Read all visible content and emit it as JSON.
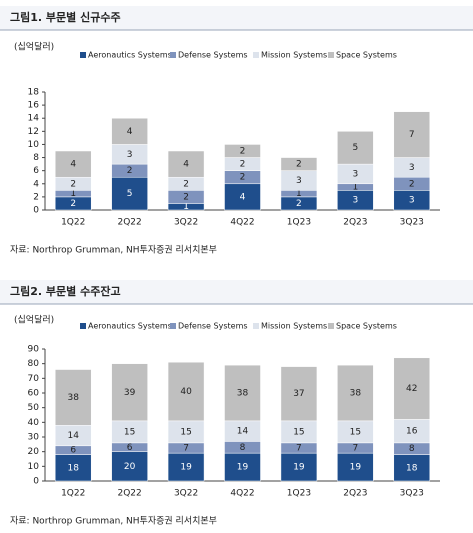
{
  "chart_data": [
    {
      "type": "bar",
      "stacked": true,
      "title": "그림1. 부문별 신규수주",
      "unit_label": "(십억달러)",
      "source": "자료: Northrop Grumman, NH투자증권 리서치본부",
      "categories": [
        "1Q22",
        "2Q22",
        "3Q22",
        "4Q22",
        "1Q23",
        "2Q23",
        "3Q23"
      ],
      "series": [
        {
          "name": "Aeronautics Systems",
          "color": "#1f4e8c",
          "values": [
            2,
            5,
            1,
            4,
            2,
            3,
            3
          ]
        },
        {
          "name": "Defense Systems",
          "color": "#7f93bd",
          "values": [
            1,
            2,
            2,
            2,
            1,
            1,
            2
          ]
        },
        {
          "name": "Mission Systems",
          "color": "#dde3ec",
          "values": [
            2,
            3,
            2,
            2,
            3,
            3,
            3
          ]
        },
        {
          "name": "Space Systems",
          "color": "#bfbfbf",
          "values": [
            4,
            4,
            4,
            2,
            2,
            5,
            7
          ]
        }
      ],
      "ylim": [
        0,
        18
      ],
      "yticks": [
        0,
        2,
        4,
        6,
        8,
        10,
        12,
        14,
        16,
        18
      ]
    },
    {
      "type": "bar",
      "stacked": true,
      "title": "그림2. 부문별 수주잔고",
      "unit_label": "(십억달러)",
      "source": "자료: Northrop Grumman, NH투자증권 리서치본부",
      "categories": [
        "1Q22",
        "2Q22",
        "3Q22",
        "4Q22",
        "1Q23",
        "2Q23",
        "3Q23"
      ],
      "series": [
        {
          "name": "Aeronautics Systems",
          "color": "#1f4e8c",
          "values": [
            18,
            20,
            19,
            19,
            19,
            19,
            18
          ]
        },
        {
          "name": "Defense Systems",
          "color": "#7f93bd",
          "values": [
            6,
            6,
            7,
            8,
            7,
            7,
            8
          ]
        },
        {
          "name": "Mission Systems",
          "color": "#dde3ec",
          "values": [
            14,
            15,
            15,
            14,
            15,
            15,
            16
          ]
        },
        {
          "name": "Space Systems",
          "color": "#bfbfbf",
          "values": [
            38,
            39,
            40,
            38,
            37,
            38,
            42
          ]
        }
      ],
      "ylim": [
        0,
        90
      ],
      "yticks": [
        0,
        10,
        20,
        30,
        40,
        50,
        60,
        70,
        80,
        90
      ]
    }
  ]
}
